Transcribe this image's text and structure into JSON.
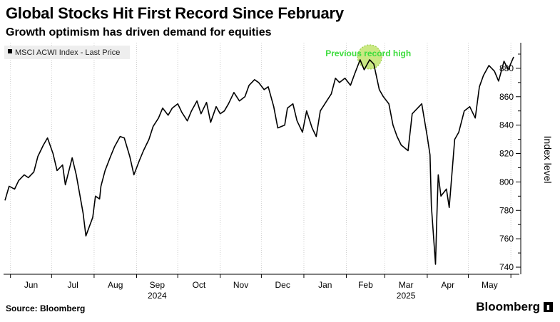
{
  "header": {
    "title": "Global Stocks Hit First Record Since February",
    "subtitle": "Growth optimism has driven demand for equities"
  },
  "footer": {
    "source": "Source: Bloomberg",
    "brand": "Bloomberg",
    "brand_icon": "chart-box-icon"
  },
  "chart_data": {
    "type": "line",
    "title": "",
    "xlabel": "",
    "ylabel": "Index level",
    "ylim": [
      735,
      898
    ],
    "yticks": [
      740,
      760,
      780,
      800,
      820,
      840,
      860,
      880
    ],
    "grid": "vertical dotted",
    "legend": {
      "position": "top-left",
      "entries": [
        "MSCI ACWI Index - Last Price"
      ]
    },
    "colors": {
      "line": "#000000",
      "highlight_fill": "#b8e05a",
      "highlight_stroke": "#8fc93a",
      "annotation": "#3ddc3d"
    },
    "x_month_labels": [
      "Jun",
      "Jul",
      "Aug",
      "Sep",
      "Oct",
      "Nov",
      "Dec",
      "Jan",
      "Feb",
      "Mar",
      "Apr",
      "May"
    ],
    "x_year_labels": [
      {
        "label": "2024",
        "after_month": "Sep"
      },
      {
        "label": "2025",
        "after_month": "Mar"
      }
    ],
    "x_start": "2024-05-28",
    "x_end": "2025-06-03",
    "annotations": [
      {
        "text": "Previous record high",
        "x": "2025-02-18",
        "y": 888
      }
    ],
    "series": [
      {
        "name": "MSCI ACWI Index - Last Price",
        "x": [
          "2024-05-28",
          "2024-05-31",
          "2024-06-04",
          "2024-06-07",
          "2024-06-11",
          "2024-06-14",
          "2024-06-18",
          "2024-06-21",
          "2024-06-25",
          "2024-06-28",
          "2024-07-02",
          "2024-07-05",
          "2024-07-09",
          "2024-07-11",
          "2024-07-16",
          "2024-07-19",
          "2024-07-24",
          "2024-07-26",
          "2024-07-31",
          "2024-08-02",
          "2024-08-05",
          "2024-08-06",
          "2024-08-09",
          "2024-08-13",
          "2024-08-16",
          "2024-08-20",
          "2024-08-23",
          "2024-08-27",
          "2024-08-30",
          "2024-09-03",
          "2024-09-06",
          "2024-09-10",
          "2024-09-13",
          "2024-09-17",
          "2024-09-20",
          "2024-09-24",
          "2024-09-27",
          "2024-10-01",
          "2024-10-04",
          "2024-10-08",
          "2024-10-11",
          "2024-10-15",
          "2024-10-18",
          "2024-10-22",
          "2024-10-25",
          "2024-10-29",
          "2024-11-01",
          "2024-11-04",
          "2024-11-07",
          "2024-11-11",
          "2024-11-15",
          "2024-11-19",
          "2024-11-22",
          "2024-11-26",
          "2024-11-29",
          "2024-12-03",
          "2024-12-06",
          "2024-12-10",
          "2024-12-13",
          "2024-12-18",
          "2024-12-20",
          "2024-12-24",
          "2024-12-27",
          "2024-12-31",
          "2025-01-03",
          "2025-01-07",
          "2025-01-10",
          "2025-01-13",
          "2025-01-17",
          "2025-01-21",
          "2025-01-24",
          "2025-01-27",
          "2025-01-31",
          "2025-02-04",
          "2025-02-07",
          "2025-02-11",
          "2025-02-14",
          "2025-02-18",
          "2025-02-21",
          "2025-02-25",
          "2025-02-28",
          "2025-03-04",
          "2025-03-07",
          "2025-03-10",
          "2025-03-13",
          "2025-03-18",
          "2025-03-21",
          "2025-03-25",
          "2025-03-28",
          "2025-04-01",
          "2025-04-03",
          "2025-04-04",
          "2025-04-07",
          "2025-04-08",
          "2025-04-09",
          "2025-04-11",
          "2025-04-15",
          "2025-04-17",
          "2025-04-21",
          "2025-04-24",
          "2025-04-28",
          "2025-05-02",
          "2025-05-06",
          "2025-05-09",
          "2025-05-12",
          "2025-05-16",
          "2025-05-20",
          "2025-05-23",
          "2025-05-27",
          "2025-05-30",
          "2025-06-03"
        ],
        "values": [
          787,
          797,
          795,
          801,
          805,
          803,
          807,
          818,
          826,
          831,
          820,
          808,
          812,
          798,
          817,
          805,
          778,
          762,
          775,
          790,
          788,
          797,
          808,
          818,
          825,
          832,
          831,
          818,
          805,
          815,
          822,
          830,
          839,
          845,
          852,
          847,
          852,
          855,
          849,
          843,
          850,
          857,
          848,
          856,
          842,
          853,
          848,
          850,
          855,
          863,
          857,
          860,
          868,
          872,
          870,
          865,
          867,
          853,
          838,
          840,
          852,
          855,
          843,
          835,
          850,
          838,
          832,
          850,
          856,
          862,
          873,
          870,
          873,
          868,
          876,
          886,
          879,
          886,
          883,
          865,
          860,
          855,
          840,
          832,
          826,
          822,
          848,
          852,
          855,
          832,
          819,
          783,
          742,
          776,
          805,
          790,
          795,
          782,
          830,
          835,
          850,
          853,
          845,
          867,
          875,
          882,
          878,
          871,
          885,
          879,
          888
        ]
      }
    ]
  }
}
